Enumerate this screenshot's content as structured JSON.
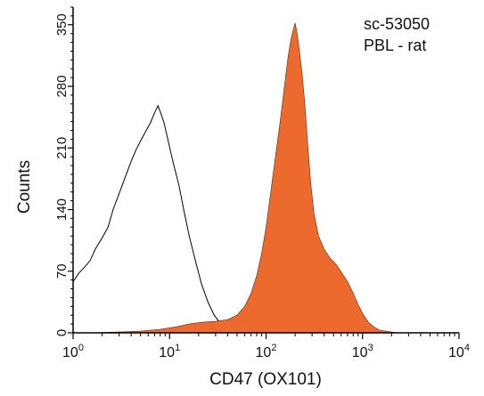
{
  "chart_data": {
    "type": "area",
    "xscale": "log",
    "xlim": [
      1,
      10000
    ],
    "ylim": [
      0,
      370
    ],
    "xlabel": "CD47 (OX101)",
    "ylabel": "Counts",
    "annotation": [
      "sc-53050",
      "PBL - rat"
    ],
    "grid": false,
    "yticks": [
      {
        "value": 0,
        "label": "0"
      },
      {
        "value": 70,
        "label": "70"
      },
      {
        "value": 140,
        "label": "140"
      },
      {
        "value": 210,
        "label": "210"
      },
      {
        "value": 280,
        "label": "280"
      },
      {
        "value": 350,
        "label": "350"
      }
    ],
    "xticks": [
      {
        "value": 1,
        "base": "10",
        "exp": "0"
      },
      {
        "value": 10,
        "base": "10",
        "exp": "1"
      },
      {
        "value": 100,
        "base": "10",
        "exp": "2"
      },
      {
        "value": 1000,
        "base": "10",
        "exp": "3"
      },
      {
        "value": 10000,
        "base": "10",
        "exp": "4"
      }
    ],
    "series": [
      {
        "style": "outline",
        "color": "#000000",
        "x": [
          1.0,
          1.15,
          1.3,
          1.5,
          1.7,
          2.0,
          2.3,
          2.6,
          3.0,
          3.5,
          4.0,
          4.5,
          5.0,
          5.6,
          6.3,
          7.0,
          7.6,
          8.2,
          8.8,
          9.5,
          10.3,
          11.2,
          12.5,
          14.0,
          16.0,
          18.5,
          21.5,
          25.0,
          29.0,
          34.0,
          40.0,
          48.0,
          60.0,
          80.0,
          110.0,
          160.0
        ],
        "y": [
          58,
          68,
          74,
          82,
          95,
          108,
          120,
          140,
          158,
          178,
          195,
          208,
          218,
          228,
          238,
          250,
          258,
          248,
          238,
          222,
          205,
          188,
          168,
          140,
          110,
          82,
          55,
          35,
          20,
          10,
          5,
          3,
          2,
          1,
          1,
          0
        ]
      },
      {
        "style": "filled",
        "color": "#ec6a2d",
        "x": [
          1.5,
          3.0,
          5.0,
          8.0,
          12.0,
          16.0,
          22.0,
          30.0,
          40.0,
          50.0,
          60.0,
          70.0,
          80.0,
          90.0,
          100.0,
          112.0,
          125.0,
          140.0,
          155.0,
          170.0,
          182.0,
          192.0,
          200.0,
          210.0,
          222.0,
          236.0,
          252.0,
          270.0,
          290.0,
          315.0,
          350.0,
          400.0,
          460.0,
          530.0,
          610.0,
          700.0,
          800.0,
          900.0,
          1000.0,
          1150.0,
          1300.0,
          1500.0,
          1750.0,
          2000.0,
          2400.0,
          3000.0
        ],
        "y": [
          0,
          1,
          2,
          4,
          7,
          10,
          12,
          13,
          15,
          20,
          30,
          45,
          65,
          90,
          120,
          160,
          200,
          240,
          280,
          315,
          335,
          345,
          352,
          340,
          320,
          295,
          260,
          215,
          170,
          135,
          110,
          95,
          85,
          78,
          68,
          58,
          45,
          32,
          22,
          12,
          7,
          3,
          2,
          1,
          0,
          0
        ]
      }
    ]
  }
}
